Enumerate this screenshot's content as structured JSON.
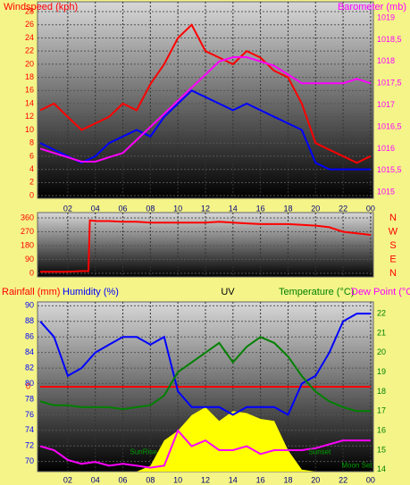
{
  "chart_data": [
    {
      "type": "line",
      "headers": [
        {
          "text": "Windspeed (kph)",
          "color": "#ff0000"
        },
        {
          "text": "Barometer (mb)",
          "color": "#ff00ff"
        }
      ],
      "x": [
        0,
        1,
        2,
        3,
        4,
        5,
        6,
        7,
        8,
        9,
        10,
        11,
        12,
        13,
        14,
        15,
        16,
        17,
        18,
        19,
        20,
        21,
        22,
        23,
        24
      ],
      "xlim": [
        -0.2,
        24.2
      ],
      "xticks": [
        {
          "value": 2,
          "label": "02"
        },
        {
          "value": 4,
          "label": "04"
        },
        {
          "value": 6,
          "label": "06"
        },
        {
          "value": 8,
          "label": "08"
        },
        10,
        12,
        14,
        16,
        18,
        20,
        22,
        {
          "value": 24,
          "label": "00"
        }
      ],
      "ylim": [
        -0.4,
        29.5
      ],
      "yticks": [
        0,
        2,
        4,
        6,
        8,
        10,
        12,
        14,
        16,
        18,
        20,
        22,
        24,
        26,
        28
      ],
      "y2lim": [
        1014.86,
        1019.37
      ],
      "y2ticks": [
        1015,
        {
          "value": 1015.5,
          "label": "1015,5"
        },
        1016,
        {
          "value": 1016.5,
          "label": "1016,5"
        },
        1017,
        {
          "value": 1017.5,
          "label": "1017,5"
        },
        1018,
        {
          "value": 1018.5,
          "label": "1018,5"
        },
        1019
      ],
      "ytick_color": "#ff0000",
      "y2tick_color": "#ff00ff",
      "series": [
        {
          "color": "#ff0000",
          "values": [
            13,
            14,
            12,
            10,
            11,
            12,
            14,
            13,
            17,
            20,
            24,
            26,
            22,
            21,
            20,
            22,
            21,
            19,
            18,
            14,
            8,
            7,
            6,
            5,
            6
          ]
        },
        {
          "color": "#0000ff",
          "values": [
            8,
            7,
            6,
            5,
            6,
            8,
            9,
            10,
            9,
            12,
            14,
            16,
            15,
            14,
            13,
            14,
            13,
            12,
            11,
            10,
            5,
            4,
            4,
            4,
            4
          ]
        },
        {
          "color": "#ff00ff",
          "axis": "y2",
          "values": [
            1016.0,
            1015.9,
            1015.8,
            1015.7,
            1015.7,
            1015.8,
            1015.9,
            1016.2,
            1016.5,
            1016.8,
            1017.1,
            1017.4,
            1017.7,
            1018.0,
            1018.1,
            1018.1,
            1018.0,
            1017.9,
            1017.7,
            1017.5,
            1017.5,
            1017.5,
            1017.5,
            1017.6,
            1017.5
          ]
        }
      ]
    },
    {
      "type": "line",
      "x": [
        0,
        1,
        2,
        3,
        3.5,
        3.6,
        4,
        5,
        6,
        7,
        8,
        9,
        10,
        11,
        12,
        13,
        14,
        15,
        16,
        17,
        18,
        19,
        20,
        21,
        22,
        23,
        24
      ],
      "xlim": [
        -0.2,
        24.2
      ],
      "xticks": [
        2,
        4,
        6,
        8,
        10,
        12,
        14,
        16,
        18,
        20,
        22,
        24
      ],
      "ylim": [
        -23,
        395
      ],
      "yticks": [
        0,
        90,
        180,
        270,
        360
      ],
      "compass": [
        "N",
        "E",
        "S",
        "W",
        "N"
      ],
      "ytick_color": "#ff0000",
      "series": [
        {
          "color": "#ff0000",
          "values": [
            10,
            10,
            10,
            15,
            15,
            345,
            340,
            340,
            335,
            335,
            330,
            330,
            330,
            330,
            330,
            335,
            330,
            325,
            320,
            320,
            320,
            315,
            310,
            300,
            270,
            260,
            250
          ]
        }
      ]
    },
    {
      "type": "line",
      "headers": [
        {
          "text": "Rainfall (mm)",
          "color": "#ff0000"
        },
        {
          "text": "Humidity (%)",
          "color": "#0000ff"
        },
        {
          "text": "UV",
          "color": "#000000"
        },
        {
          "text": "Temperature (°C)",
          "color": "#008000"
        },
        {
          "text": "Dew Point (°C)",
          "color": "#ff00ff"
        }
      ],
      "x": [
        0,
        1,
        2,
        3,
        4,
        5,
        6,
        7,
        8,
        9,
        10,
        11,
        12,
        13,
        14,
        15,
        16,
        17,
        18,
        19,
        20,
        21,
        22,
        23,
        24
      ],
      "xlim": [
        -0.2,
        24.2
      ],
      "xticks": [
        {
          "value": 2,
          "label": "02"
        },
        {
          "value": 4,
          "label": "04"
        },
        {
          "value": 6,
          "label": "06"
        },
        {
          "value": 8,
          "label": "08"
        },
        10,
        12,
        14,
        16,
        18,
        20,
        22,
        {
          "value": 24,
          "label": "00"
        }
      ],
      "ylim": [
        68.7,
        90.5
      ],
      "yticks": [
        70,
        72,
        74,
        76,
        78,
        80,
        82,
        84,
        86,
        88,
        90
      ],
      "y2lim": [
        13.9,
        22.6
      ],
      "y2ticks": [
        14,
        15,
        16,
        17,
        18,
        19,
        20,
        21,
        22
      ],
      "y3lim": [
        -1,
        1
      ],
      "y3ticks": [
        0
      ],
      "ytick_color": "#0000ff",
      "y2tick_color": "#008000",
      "y3tick_color": "#ff0000",
      "series": [
        {
          "color": "#ffff00",
          "axis": "y2",
          "fill": true,
          "values": [
            13.9,
            13.9,
            13.9,
            13.9,
            13.9,
            13.9,
            13.9,
            13.9,
            14.2,
            15.5,
            16.0,
            16.8,
            17.2,
            16.5,
            17.0,
            16.9,
            16.6,
            16.5,
            15.0,
            14.0,
            13.9,
            13.9,
            13.9,
            13.9,
            13.9
          ]
        },
        {
          "color": "#ff0000",
          "axis": "y3",
          "values": [
            0,
            0,
            0,
            0,
            0,
            0,
            0,
            0,
            0,
            0,
            0,
            0,
            0,
            0,
            0,
            0,
            0,
            0,
            0,
            0,
            0,
            0,
            0,
            0,
            0
          ]
        },
        {
          "color": "#0000ff",
          "values": [
            88,
            86,
            81,
            82,
            84,
            85,
            86,
            86,
            85,
            86,
            79,
            77,
            77,
            77,
            76,
            77,
            77,
            77,
            76,
            80,
            81,
            84,
            88,
            89,
            89
          ]
        },
        {
          "color": "#008000",
          "axis": "y2",
          "values": [
            17.5,
            17.3,
            17.3,
            17.2,
            17.2,
            17.2,
            17.1,
            17.2,
            17.3,
            17.8,
            19.0,
            19.5,
            20.0,
            20.5,
            19.5,
            20.3,
            20.8,
            20.5,
            19.8,
            18.8,
            18.0,
            17.5,
            17.2,
            17.0,
            17.0
          ]
        },
        {
          "color": "#ff00ff",
          "axis": "y2",
          "values": [
            15.2,
            15.0,
            14.5,
            14.3,
            14.4,
            14.2,
            14.3,
            14.2,
            14.1,
            14.2,
            16.0,
            15.2,
            15.5,
            15.0,
            15.0,
            15.2,
            14.8,
            15.0,
            15.0,
            15.0,
            15.1,
            15.3,
            15.5,
            15.5,
            15.5
          ]
        }
      ],
      "annotations": [
        {
          "text": "SunRise",
          "x": 7.5,
          "y": 14.9
        },
        {
          "text": "Sunset",
          "x": 20.3,
          "y": 14.9
        },
        {
          "text": "Moon Set",
          "x": 23.0,
          "y": 14.2
        }
      ]
    }
  ]
}
